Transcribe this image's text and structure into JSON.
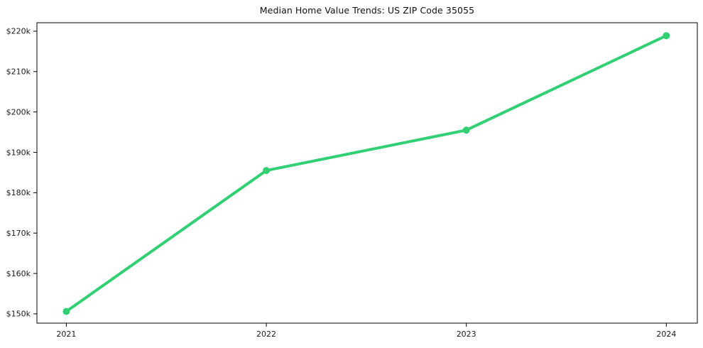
{
  "chart_data": {
    "type": "line",
    "title": "Median Home Value Trends: US ZIP Code 35055",
    "xlabel": "",
    "ylabel": "",
    "x": [
      2021,
      2022,
      2023,
      2024
    ],
    "x_tick_labels": [
      "2021",
      "2022",
      "2023",
      "2024"
    ],
    "series": [
      {
        "name": "Median Home Value",
        "values": [
          150600,
          185500,
          195500,
          218900
        ]
      }
    ],
    "y_ticks": [
      150000,
      160000,
      170000,
      180000,
      190000,
      200000,
      210000,
      220000
    ],
    "y_tick_labels": [
      "$150k",
      "$160k",
      "$170k",
      "$180k",
      "$190k",
      "$200k",
      "$210k",
      "$220k"
    ],
    "xlim": [
      2020.853,
      2024.155
    ],
    "ylim": [
      147700,
      222100
    ],
    "grid": false,
    "legend": null,
    "line_color": "#33cf74",
    "marker": "circle",
    "marker_radius": 5,
    "line_width": 4,
    "axis_color": "#000000",
    "background_color": "#ffffff"
  }
}
